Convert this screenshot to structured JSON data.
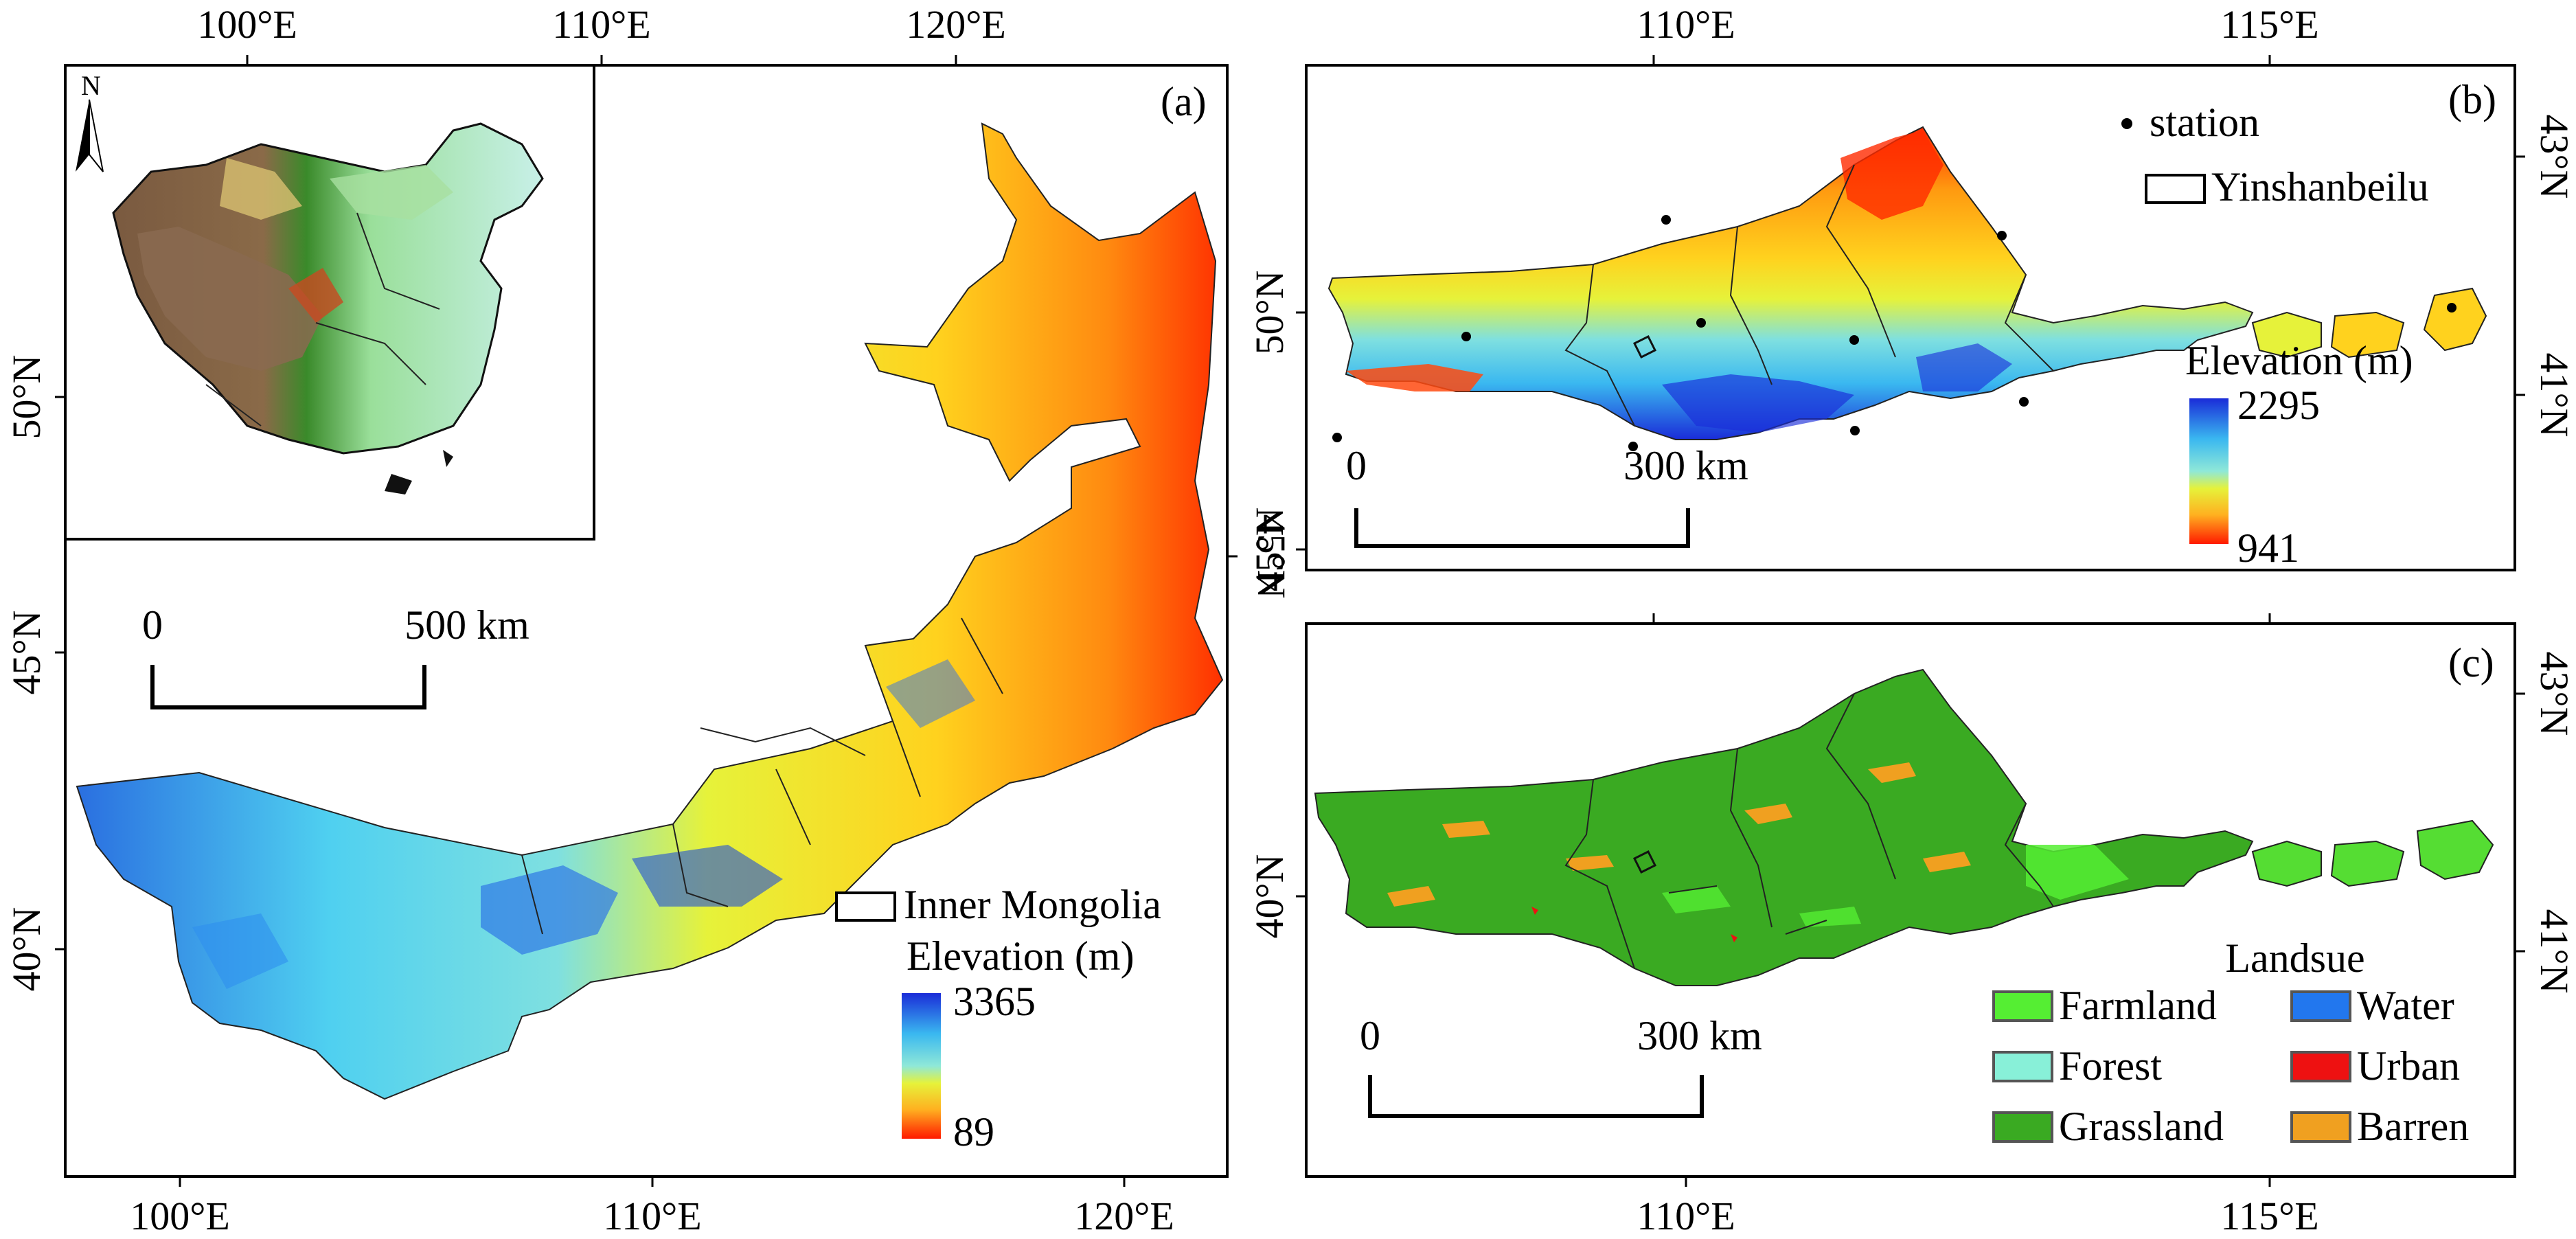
{
  "panel_a": {
    "label": "(a)",
    "top_ticks": [
      "100°E",
      "110°E",
      "120°E"
    ],
    "bottom_ticks": [
      "100°E",
      "110°E",
      "120°E"
    ],
    "left_ticks": [
      "50°N",
      "45°N",
      "40°N"
    ],
    "right_ticks": [
      "45°N"
    ],
    "scale_start": "0",
    "scale_end": "500 km",
    "inset_north": "N",
    "legend_boundary": "Inner Mongolia",
    "legend_title": "Elevation (m)",
    "legend_max": "3365",
    "legend_min": "89"
  },
  "panel_b": {
    "label": "(b)",
    "top_ticks": [
      "110°E",
      "115°E"
    ],
    "left_ticks": [
      "50°N",
      "45°N"
    ],
    "right_ticks": [
      "43°N",
      "41°N"
    ],
    "legend_station": "station",
    "legend_boundary": "Yinshanbeilu",
    "legend_title": "Elevation (m)",
    "legend_max": "2295",
    "legend_min": "941",
    "scale_start": "0",
    "scale_end": "300 km"
  },
  "panel_c": {
    "label": "(c)",
    "bottom_ticks": [
      "110°E",
      "115°E"
    ],
    "left_ticks": [
      "40°N"
    ],
    "right_ticks": [
      "43°N",
      "41°N"
    ],
    "legend_title": "Landsue",
    "landuse": [
      {
        "name": "Farmland",
        "color": "#55ee33"
      },
      {
        "name": "Water",
        "color": "#2277ee"
      },
      {
        "name": "Forest",
        "color": "#88f0d8"
      },
      {
        "name": "Urban",
        "color": "#ee1111"
      },
      {
        "name": "Grassland",
        "color": "#3aaa22"
      },
      {
        "name": "Barren",
        "color": "#f0a020"
      }
    ],
    "scale_start": "0",
    "scale_end": "300 km"
  },
  "colors": {
    "elev_low": "#ff2a00",
    "elev_mid_low": "#ffd21e",
    "elev_mid": "#e6f23a",
    "elev_mid_high": "#4fd0f0",
    "elev_high": "#1a2cd8",
    "grassland": "#3aaa22",
    "farmland": "#55ee33",
    "barren": "#f0a020"
  }
}
